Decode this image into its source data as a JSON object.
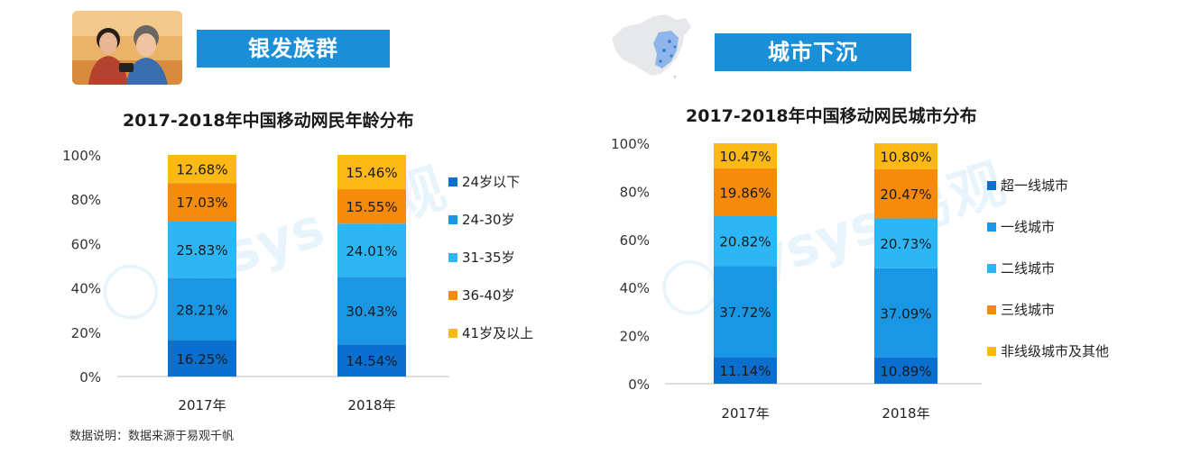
{
  "left": {
    "banner_label": "银发族群",
    "photo_icon": "elderly-couple-photo"
  },
  "right": {
    "banner_label": "城市下沉",
    "map_icon": "china-map-icon"
  },
  "footnote": "数据说明：数据来源于易观千帆",
  "chart_data": [
    {
      "type": "bar",
      "stacked": true,
      "title": "2017-2018年中国移动网民年龄分布",
      "categories": [
        "2017年",
        "2018年"
      ],
      "yticks": [
        "0%",
        "20%",
        "40%",
        "60%",
        "80%",
        "100%"
      ],
      "ylim": [
        0,
        100
      ],
      "legend_position": "right",
      "series": [
        {
          "name": "24岁以下",
          "color": "#0b6fd0",
          "values": [
            16.25,
            14.54
          ],
          "labels": [
            "16.25%",
            "14.54%"
          ]
        },
        {
          "name": "24-30岁",
          "color": "#1a97e4",
          "values": [
            28.21,
            30.43
          ],
          "labels": [
            "28.21%",
            "30.43%"
          ]
        },
        {
          "name": "31-35岁",
          "color": "#2db6f5",
          "values": [
            25.83,
            24.01
          ],
          "labels": [
            "25.83%",
            "24.01%"
          ]
        },
        {
          "name": "36-40岁",
          "color": "#f58a0b",
          "values": [
            17.03,
            15.55
          ],
          "labels": [
            "17.03%",
            "15.55%"
          ]
        },
        {
          "name": "41岁及以上",
          "color": "#fcb814",
          "values": [
            12.68,
            15.46
          ],
          "labels": [
            "12.68%",
            "15.46%"
          ]
        }
      ]
    },
    {
      "type": "bar",
      "stacked": true,
      "title": "2017-2018年中国移动网民城市分布",
      "categories": [
        "2017年",
        "2018年"
      ],
      "yticks": [
        "0%",
        "20%",
        "40%",
        "60%",
        "80%",
        "100%"
      ],
      "ylim": [
        0,
        100
      ],
      "legend_position": "right",
      "series": [
        {
          "name": "超一线城市",
          "color": "#0b6fd0",
          "values": [
            11.14,
            10.89
          ],
          "labels": [
            "11.14%",
            "10.89%"
          ]
        },
        {
          "name": "一线城市",
          "color": "#1a97e4",
          "values": [
            37.72,
            37.09
          ],
          "labels": [
            "37.72%",
            "37.09%"
          ]
        },
        {
          "name": "二线城市",
          "color": "#2db6f5",
          "values": [
            20.82,
            20.73
          ],
          "labels": [
            "20.82%",
            "20.73%"
          ]
        },
        {
          "name": "三线城市",
          "color": "#f58a0b",
          "values": [
            19.86,
            20.47
          ],
          "labels": [
            "19.86%",
            "20.47%"
          ]
        },
        {
          "name": "非线级城市及其他",
          "color": "#fcb814",
          "values": [
            10.47,
            10.8
          ],
          "labels": [
            "10.47%",
            "10.80%"
          ]
        }
      ]
    }
  ]
}
